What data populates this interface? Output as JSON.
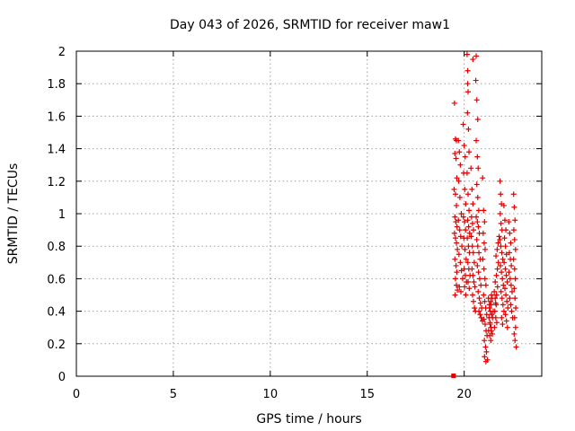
{
  "chart_data": {
    "type": "scatter",
    "title": "Day 043 of 2026, SRMTID for receiver maw1",
    "xlabel": "GPS time / hours",
    "ylabel": "SRMTID / TECUs",
    "xlim": [
      0,
      24
    ],
    "ylim": [
      0,
      2
    ],
    "x_ticks": [
      0,
      5,
      10,
      15,
      20
    ],
    "x_tick_labels": [
      "0",
      "5",
      "10",
      "15",
      "20"
    ],
    "y_ticks": [
      0,
      0.2,
      0.4,
      0.6,
      0.8,
      1.0,
      1.2,
      1.4,
      1.6,
      1.8,
      2.0
    ],
    "y_tick_labels": [
      "0",
      "0.2",
      "0.4",
      "0.6",
      "0.8",
      "1",
      "1.2",
      "1.4",
      "1.6",
      "1.8",
      "2"
    ],
    "grid": true,
    "point_color": "#e00000",
    "markers": [
      {
        "name": "gap-marker",
        "shape": "square",
        "x": 19.45,
        "y": 0.0
      }
    ],
    "series": [
      {
        "name": "SRMTID",
        "marker": "plus",
        "points": [
          [
            19.5,
            1.68
          ],
          [
            19.55,
            1.46
          ],
          [
            19.6,
            1.45
          ],
          [
            19.52,
            1.37
          ],
          [
            19.58,
            1.34
          ],
          [
            19.62,
            1.22
          ],
          [
            19.48,
            1.15
          ],
          [
            19.55,
            1.12
          ],
          [
            19.6,
            1.05
          ],
          [
            19.52,
            0.98
          ],
          [
            19.57,
            0.95
          ],
          [
            19.63,
            0.92
          ],
          [
            19.5,
            0.88
          ],
          [
            19.55,
            0.85
          ],
          [
            19.6,
            0.82
          ],
          [
            19.65,
            0.78
          ],
          [
            19.52,
            0.72
          ],
          [
            19.58,
            0.68
          ],
          [
            19.62,
            0.64
          ],
          [
            19.55,
            0.6
          ],
          [
            19.6,
            0.56
          ],
          [
            19.65,
            0.53
          ],
          [
            19.53,
            0.5
          ],
          [
            19.7,
            1.45
          ],
          [
            19.75,
            1.38
          ],
          [
            19.8,
            1.3
          ],
          [
            19.72,
            1.2
          ],
          [
            19.78,
            1.1
          ],
          [
            19.85,
            1.0
          ],
          [
            19.7,
            0.96
          ],
          [
            19.77,
            0.9
          ],
          [
            19.82,
            0.86
          ],
          [
            19.88,
            0.8
          ],
          [
            19.73,
            0.75
          ],
          [
            19.8,
            0.7
          ],
          [
            19.86,
            0.65
          ],
          [
            19.92,
            0.6
          ],
          [
            19.75,
            0.55
          ],
          [
            19.83,
            0.52
          ],
          [
            19.95,
            1.55
          ],
          [
            20.0,
            1.42
          ],
          [
            20.05,
            1.35
          ],
          [
            19.97,
            1.25
          ],
          [
            20.03,
            1.15
          ],
          [
            20.08,
            1.06
          ],
          [
            19.96,
            0.98
          ],
          [
            20.02,
            0.95
          ],
          [
            20.07,
            0.9
          ],
          [
            19.98,
            0.85
          ],
          [
            20.04,
            0.78
          ],
          [
            20.1,
            0.72
          ],
          [
            20.0,
            0.66
          ],
          [
            20.06,
            0.62
          ],
          [
            20.12,
            0.58
          ],
          [
            20.02,
            0.55
          ],
          [
            20.08,
            0.5
          ],
          [
            20.15,
            1.98
          ],
          [
            20.18,
            1.88
          ],
          [
            20.2,
            1.75
          ],
          [
            20.17,
            1.62
          ],
          [
            20.22,
            1.52
          ],
          [
            20.25,
            1.38
          ],
          [
            20.15,
            1.25
          ],
          [
            20.2,
            1.12
          ],
          [
            20.25,
            1.02
          ],
          [
            20.18,
            0.96
          ],
          [
            20.23,
            0.92
          ],
          [
            20.28,
            0.88
          ],
          [
            20.16,
            0.85
          ],
          [
            20.22,
            0.8
          ],
          [
            20.27,
            0.76
          ],
          [
            20.19,
            0.7
          ],
          [
            20.24,
            0.66
          ],
          [
            20.3,
            0.62
          ],
          [
            20.2,
            0.58
          ],
          [
            20.26,
            0.54
          ],
          [
            20.35,
            1.28
          ],
          [
            20.4,
            1.15
          ],
          [
            20.45,
            1.06
          ],
          [
            20.38,
            0.98
          ],
          [
            20.43,
            0.94
          ],
          [
            20.48,
            0.9
          ],
          [
            20.36,
            0.86
          ],
          [
            20.42,
            0.8
          ],
          [
            20.47,
            0.76
          ],
          [
            20.52,
            0.7
          ],
          [
            20.4,
            0.66
          ],
          [
            20.45,
            0.62
          ],
          [
            20.5,
            0.58
          ],
          [
            20.55,
            0.55
          ],
          [
            20.43,
            0.5
          ],
          [
            20.48,
            0.46
          ],
          [
            20.53,
            0.42
          ],
          [
            20.58,
            0.4
          ],
          [
            20.6,
            1.82
          ],
          [
            20.65,
            1.7
          ],
          [
            20.7,
            1.58
          ],
          [
            20.62,
            1.45
          ],
          [
            20.68,
            1.35
          ],
          [
            20.72,
            1.28
          ],
          [
            20.65,
            1.18
          ],
          [
            20.7,
            1.1
          ],
          [
            20.75,
            1.02
          ],
          [
            20.62,
            0.98
          ],
          [
            20.68,
            0.95
          ],
          [
            20.73,
            0.92
          ],
          [
            20.78,
            0.88
          ],
          [
            20.65,
            0.84
          ],
          [
            20.7,
            0.8
          ],
          [
            20.76,
            0.76
          ],
          [
            20.82,
            0.72
          ],
          [
            20.68,
            0.68
          ],
          [
            20.74,
            0.64
          ],
          [
            20.8,
            0.6
          ],
          [
            20.86,
            0.56
          ],
          [
            20.72,
            0.52
          ],
          [
            20.78,
            0.48
          ],
          [
            20.84,
            0.45
          ],
          [
            20.9,
            0.42
          ],
          [
            20.76,
            0.4
          ],
          [
            20.82,
            0.38
          ],
          [
            20.88,
            0.36
          ],
          [
            20.94,
            0.34
          ],
          [
            20.45,
            1.95
          ],
          [
            20.62,
            1.97
          ],
          [
            20.18,
            1.8
          ],
          [
            20.95,
            1.22
          ],
          [
            21.0,
            1.02
          ],
          [
            21.05,
            0.95
          ],
          [
            20.98,
            0.88
          ],
          [
            21.03,
            0.82
          ],
          [
            21.08,
            0.78
          ],
          [
            20.96,
            0.72
          ],
          [
            21.02,
            0.66
          ],
          [
            21.07,
            0.6
          ],
          [
            21.12,
            0.56
          ],
          [
            21.0,
            0.5
          ],
          [
            21.06,
            0.46
          ],
          [
            21.11,
            0.42
          ],
          [
            21.16,
            0.38
          ],
          [
            21.02,
            0.35
          ],
          [
            21.08,
            0.32
          ],
          [
            21.13,
            0.28
          ],
          [
            21.18,
            0.25
          ],
          [
            21.04,
            0.22
          ],
          [
            21.1,
            0.18
          ],
          [
            21.15,
            0.15
          ],
          [
            21.05,
            0.12
          ],
          [
            21.12,
            0.09
          ],
          [
            21.2,
            0.1
          ],
          [
            21.25,
            0.48
          ],
          [
            21.3,
            0.44
          ],
          [
            21.35,
            0.4
          ],
          [
            21.28,
            0.36
          ],
          [
            21.33,
            0.33
          ],
          [
            21.38,
            0.3
          ],
          [
            21.26,
            0.28
          ],
          [
            21.32,
            0.25
          ],
          [
            21.37,
            0.22
          ],
          [
            21.42,
            0.38
          ],
          [
            21.3,
            0.42
          ],
          [
            21.36,
            0.46
          ],
          [
            21.41,
            0.5
          ],
          [
            21.46,
            0.36
          ],
          [
            21.34,
            0.32
          ],
          [
            21.4,
            0.28
          ],
          [
            21.45,
            0.26
          ],
          [
            21.5,
            0.4
          ],
          [
            21.38,
            0.44
          ],
          [
            21.44,
            0.48
          ],
          [
            21.55,
            0.52
          ],
          [
            21.6,
            0.48
          ],
          [
            21.65,
            0.44
          ],
          [
            21.58,
            0.4
          ],
          [
            21.63,
            0.36
          ],
          [
            21.68,
            0.33
          ],
          [
            21.56,
            0.3
          ],
          [
            21.62,
            0.45
          ],
          [
            21.67,
            0.5
          ],
          [
            21.72,
            0.55
          ],
          [
            21.6,
            0.58
          ],
          [
            21.66,
            0.62
          ],
          [
            21.71,
            0.66
          ],
          [
            21.76,
            0.7
          ],
          [
            21.64,
            0.74
          ],
          [
            21.7,
            0.78
          ],
          [
            21.75,
            0.82
          ],
          [
            21.8,
            0.86
          ],
          [
            21.85,
            1.2
          ],
          [
            21.88,
            1.12
          ],
          [
            21.92,
            1.06
          ],
          [
            21.86,
            1.0
          ],
          [
            21.9,
            0.94
          ],
          [
            21.95,
            0.9
          ],
          [
            21.84,
            0.84
          ],
          [
            21.89,
            0.8
          ],
          [
            21.94,
            0.76
          ],
          [
            21.99,
            0.72
          ],
          [
            21.87,
            0.68
          ],
          [
            21.92,
            0.64
          ],
          [
            21.97,
            0.6
          ],
          [
            22.02,
            0.56
          ],
          [
            21.9,
            0.52
          ],
          [
            21.95,
            0.48
          ],
          [
            22.0,
            0.44
          ],
          [
            22.05,
            0.4
          ],
          [
            21.93,
            0.36
          ],
          [
            21.98,
            0.32
          ],
          [
            22.05,
            1.05
          ],
          [
            22.1,
            0.96
          ],
          [
            22.15,
            0.9
          ],
          [
            22.08,
            0.85
          ],
          [
            22.13,
            0.8
          ],
          [
            22.18,
            0.75
          ],
          [
            22.06,
            0.7
          ],
          [
            22.12,
            0.66
          ],
          [
            22.17,
            0.62
          ],
          [
            22.22,
            0.58
          ],
          [
            22.1,
            0.54
          ],
          [
            22.15,
            0.5
          ],
          [
            22.2,
            0.46
          ],
          [
            22.25,
            0.42
          ],
          [
            22.13,
            0.38
          ],
          [
            22.18,
            0.34
          ],
          [
            22.23,
            0.3
          ],
          [
            22.3,
            0.95
          ],
          [
            22.35,
            0.88
          ],
          [
            22.4,
            0.82
          ],
          [
            22.33,
            0.76
          ],
          [
            22.38,
            0.72
          ],
          [
            22.43,
            0.68
          ],
          [
            22.31,
            0.64
          ],
          [
            22.37,
            0.6
          ],
          [
            22.42,
            0.56
          ],
          [
            22.47,
            0.52
          ],
          [
            22.35,
            0.48
          ],
          [
            22.4,
            0.44
          ],
          [
            22.45,
            0.4
          ],
          [
            22.5,
            0.36
          ],
          [
            22.55,
            1.12
          ],
          [
            22.58,
            1.04
          ],
          [
            22.62,
            0.96
          ],
          [
            22.56,
            0.9
          ],
          [
            22.6,
            0.84
          ],
          [
            22.65,
            0.78
          ],
          [
            22.55,
            0.72
          ],
          [
            22.6,
            0.66
          ],
          [
            22.64,
            0.6
          ],
          [
            22.58,
            0.54
          ],
          [
            22.62,
            0.48
          ],
          [
            22.66,
            0.42
          ],
          [
            22.6,
            0.36
          ],
          [
            22.65,
            0.3
          ],
          [
            22.58,
            0.26
          ],
          [
            22.62,
            0.22
          ],
          [
            22.68,
            0.18
          ]
        ]
      }
    ]
  }
}
